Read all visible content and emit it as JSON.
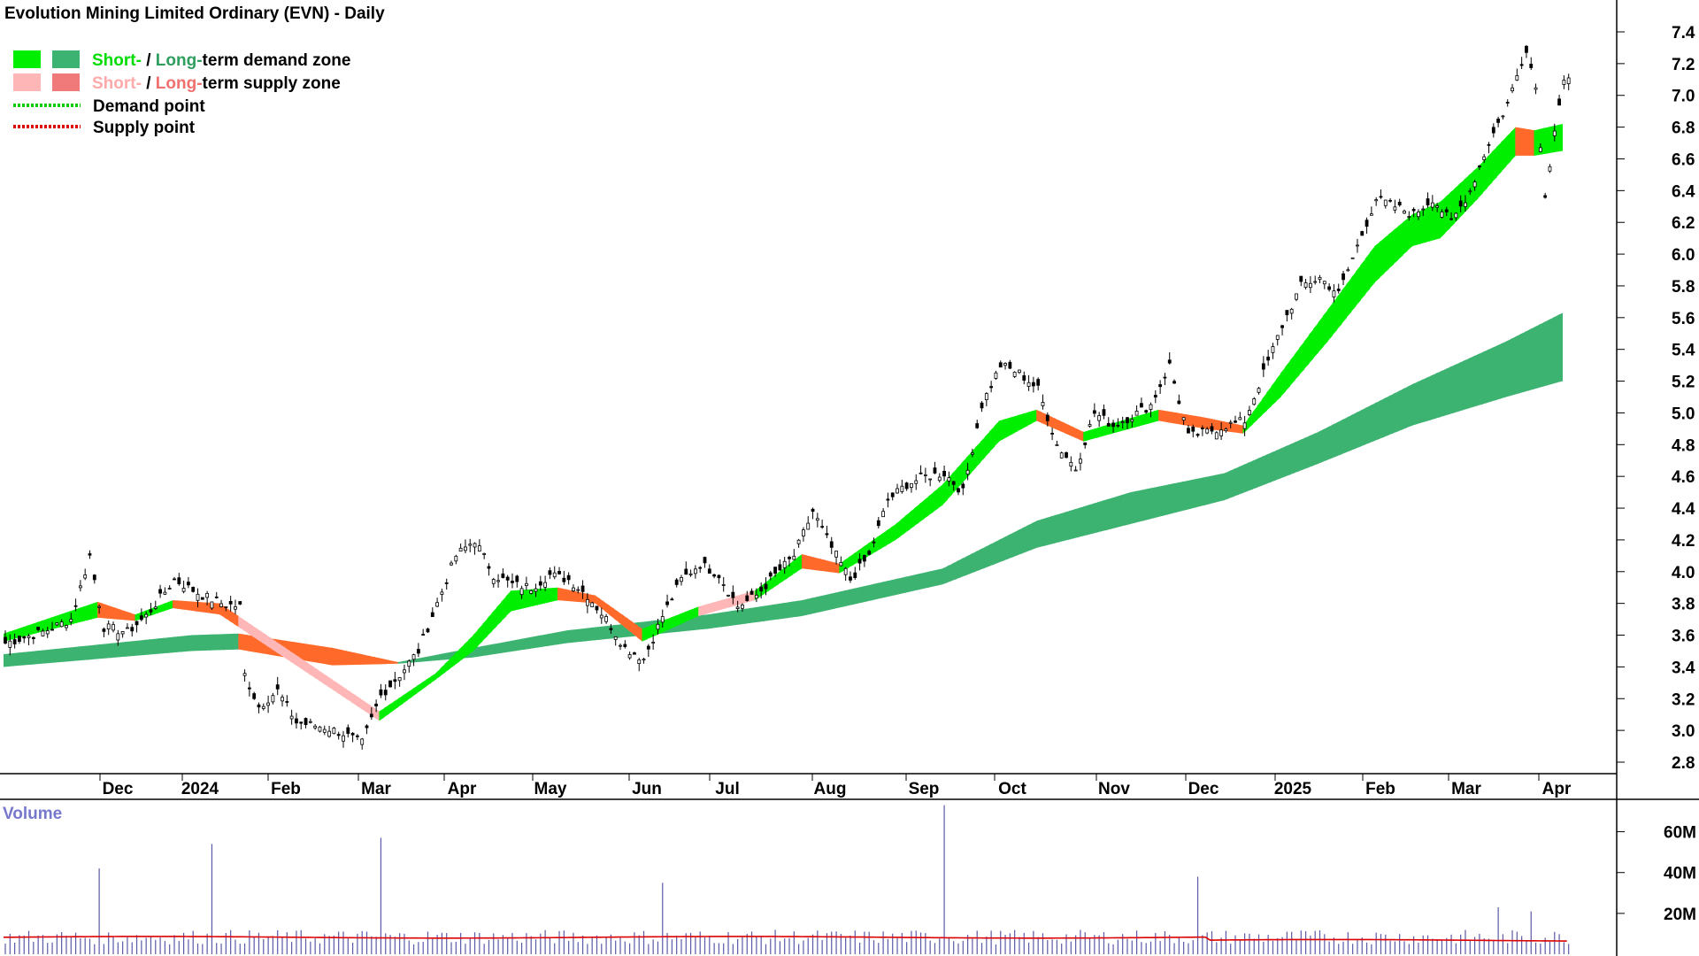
{
  "title": "Evolution Mining Limited Ordinary (EVN) - Daily",
  "legend": {
    "demand_zone_prefix_short": "Short-",
    "demand_zone_sep": " / ",
    "demand_zone_long": "Long-",
    "demand_zone_suffix": "term demand zone",
    "supply_zone_prefix_short": "Short-",
    "supply_zone_sep": " / ",
    "supply_zone_long": "Long-",
    "supply_zone_suffix": "term supply zone",
    "demand_point": "Demand point",
    "supply_point": "Supply point"
  },
  "volume_label": "Volume",
  "colors": {
    "short_demand": "#00ee00",
    "long_demand": "#3cb371",
    "short_supply": "#ffb6b6",
    "long_supply": "#ff6a2a",
    "demand_point": "#00cc00",
    "supply_point": "#dd0000",
    "volume_bar": "#5a5aa8",
    "volume_avg": "#dd0000",
    "axis": "#000000"
  },
  "chart_data": [
    {
      "type": "candlestick",
      "title": "Evolution Mining Limited Ordinary (EVN) - Daily",
      "x_labels": [
        "Dec",
        "2024",
        "Feb",
        "Mar",
        "Apr",
        "May",
        "Jun",
        "Jul",
        "Aug",
        "Sep",
        "Oct",
        "Nov",
        "Dec",
        "2025",
        "Feb",
        "Mar",
        "Apr"
      ],
      "y_ticks": [
        "2.8",
        "3.0",
        "3.2",
        "3.4",
        "3.6",
        "3.8",
        "4.0",
        "4.2",
        "4.4",
        "4.6",
        "4.8",
        "5.0",
        "5.2",
        "5.4",
        "5.6",
        "5.8",
        "6.0",
        "6.2",
        "6.4",
        "6.6",
        "6.8",
        "7.0",
        "7.2",
        "7.4"
      ],
      "ylim": [
        2.7,
        7.55
      ],
      "close_path": [
        [
          0,
          3.55
        ],
        [
          8,
          3.62
        ],
        [
          14,
          3.7
        ],
        [
          18,
          4.1
        ],
        [
          21,
          3.65
        ],
        [
          26,
          3.62
        ],
        [
          30,
          3.72
        ],
        [
          36,
          3.95
        ],
        [
          42,
          3.85
        ],
        [
          46,
          3.8
        ],
        [
          50,
          3.78
        ],
        [
          51,
          3.35
        ],
        [
          54,
          3.15
        ],
        [
          58,
          3.25
        ],
        [
          62,
          3.05
        ],
        [
          68,
          3.02
        ],
        [
          72,
          2.98
        ],
        [
          76,
          2.92
        ],
        [
          80,
          3.22
        ],
        [
          84,
          3.35
        ],
        [
          88,
          3.5
        ],
        [
          92,
          3.8
        ],
        [
          96,
          4.1
        ],
        [
          100,
          4.2
        ],
        [
          104,
          3.98
        ],
        [
          108,
          3.92
        ],
        [
          112,
          3.9
        ],
        [
          116,
          3.98
        ],
        [
          120,
          3.95
        ],
        [
          124,
          3.85
        ],
        [
          128,
          3.7
        ],
        [
          132,
          3.52
        ],
        [
          136,
          3.45
        ],
        [
          140,
          3.72
        ],
        [
          144,
          3.95
        ],
        [
          148,
          4.05
        ],
        [
          152,
          3.98
        ],
        [
          156,
          3.78
        ],
        [
          160,
          3.85
        ],
        [
          164,
          3.98
        ],
        [
          168,
          4.1
        ],
        [
          172,
          4.38
        ],
        [
          176,
          4.15
        ],
        [
          180,
          3.95
        ],
        [
          184,
          4.1
        ],
        [
          188,
          4.45
        ],
        [
          192,
          4.55
        ],
        [
          196,
          4.6
        ],
        [
          200,
          4.62
        ],
        [
          204,
          4.5
        ],
        [
          208,
          5.05
        ],
        [
          212,
          5.3
        ],
        [
          216,
          5.25
        ],
        [
          220,
          5.15
        ],
        [
          224,
          4.8
        ],
        [
          228,
          4.65
        ],
        [
          232,
          5.0
        ],
        [
          236,
          4.92
        ],
        [
          240,
          4.98
        ],
        [
          244,
          5.05
        ],
        [
          248,
          5.3
        ],
        [
          252,
          4.85
        ],
        [
          256,
          4.88
        ],
        [
          260,
          4.92
        ],
        [
          264,
          4.95
        ],
        [
          268,
          5.25
        ],
        [
          272,
          5.55
        ],
        [
          276,
          5.8
        ],
        [
          280,
          5.85
        ],
        [
          284,
          5.75
        ],
        [
          288,
          6.05
        ],
        [
          292,
          6.35
        ],
        [
          296,
          6.3
        ],
        [
          300,
          6.25
        ],
        [
          304,
          6.35
        ],
        [
          308,
          6.2
        ],
        [
          312,
          6.4
        ],
        [
          316,
          6.7
        ],
        [
          320,
          6.95
        ],
        [
          324,
          7.3
        ],
        [
          326,
          7.05
        ],
        [
          328,
          6.35
        ],
        [
          330,
          6.8
        ],
        [
          332,
          7.1
        ]
      ],
      "short_zone": [
        [
          0,
          3.61,
          3.56
        ],
        [
          20,
          3.81,
          3.71
        ],
        [
          28,
          3.73,
          3.69
        ],
        [
          36,
          3.82,
          3.77
        ],
        [
          46,
          3.8,
          3.73
        ],
        [
          80,
          3.12,
          3.06
        ],
        [
          92,
          3.36,
          3.32
        ],
        [
          100,
          3.6,
          3.5
        ],
        [
          108,
          3.88,
          3.75
        ],
        [
          118,
          3.9,
          3.82
        ],
        [
          126,
          3.85,
          3.8
        ],
        [
          136,
          3.64,
          3.56
        ],
        [
          148,
          3.78,
          3.72
        ],
        [
          160,
          3.88,
          3.82
        ],
        [
          170,
          4.11,
          4.02
        ],
        [
          178,
          4.05,
          3.99
        ],
        [
          190,
          4.3,
          4.2
        ],
        [
          200,
          4.55,
          4.42
        ],
        [
          212,
          4.95,
          4.82
        ],
        [
          220,
          5.02,
          4.95
        ],
        [
          230,
          4.88,
          4.82
        ],
        [
          246,
          5.02,
          4.95
        ],
        [
          256,
          4.97,
          4.9
        ],
        [
          264,
          4.92,
          4.87
        ],
        [
          272,
          5.25,
          5.1
        ],
        [
          282,
          5.65,
          5.45
        ],
        [
          292,
          6.05,
          5.82
        ],
        [
          300,
          6.25,
          6.05
        ],
        [
          306,
          6.33,
          6.1
        ],
        [
          314,
          6.55,
          6.35
        ],
        [
          322,
          6.8,
          6.62
        ],
        [
          326,
          6.78,
          6.62
        ],
        [
          332,
          6.82,
          6.65
        ]
      ],
      "long_zone": [
        [
          0,
          3.48,
          3.4
        ],
        [
          40,
          3.6,
          3.5
        ],
        [
          50,
          3.61,
          3.51
        ],
        [
          70,
          3.52,
          3.41
        ],
        [
          84,
          3.43,
          3.42
        ],
        [
          100,
          3.52,
          3.46
        ],
        [
          120,
          3.63,
          3.55
        ],
        [
          150,
          3.73,
          3.64
        ],
        [
          170,
          3.82,
          3.72
        ],
        [
          200,
          4.02,
          3.92
        ],
        [
          220,
          4.32,
          4.15
        ],
        [
          240,
          4.5,
          4.3
        ],
        [
          260,
          4.62,
          4.45
        ],
        [
          280,
          4.88,
          4.68
        ],
        [
          300,
          5.18,
          4.92
        ],
        [
          320,
          5.45,
          5.1
        ],
        [
          332,
          5.63,
          5.2
        ]
      ],
      "volume": {
        "label": "Volume",
        "y_ticks": [
          "20M",
          "40M",
          "60M"
        ],
        "ylim": [
          0,
          75
        ],
        "baseline": 8,
        "spikes": [
          [
            20,
            42
          ],
          [
            44,
            54
          ],
          [
            80,
            57
          ],
          [
            140,
            35
          ],
          [
            200,
            73
          ],
          [
            254,
            38
          ],
          [
            318,
            23
          ],
          [
            325,
            21
          ]
        ]
      }
    }
  ]
}
